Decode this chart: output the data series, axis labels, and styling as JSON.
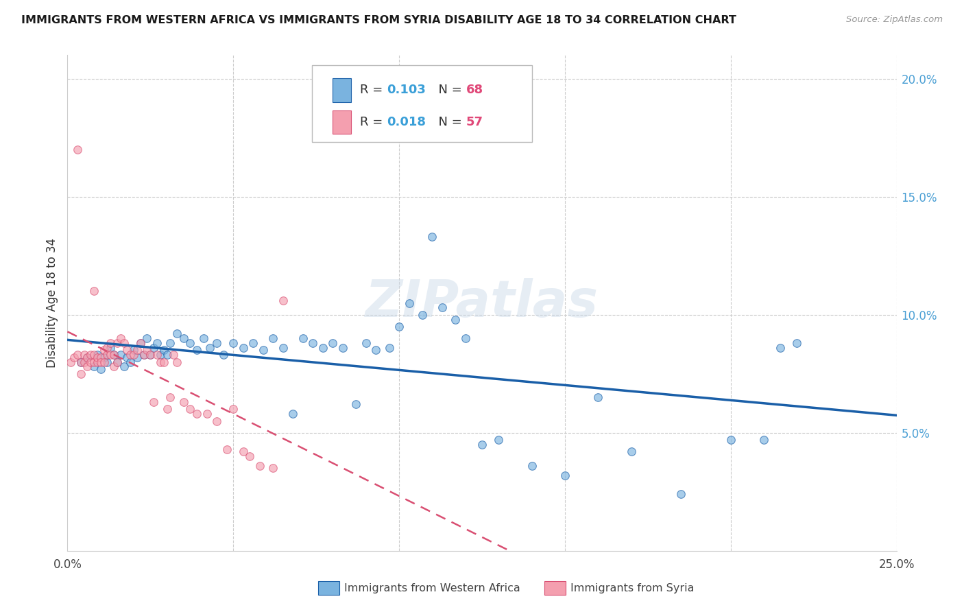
{
  "title": "IMMIGRANTS FROM WESTERN AFRICA VS IMMIGRANTS FROM SYRIA DISABILITY AGE 18 TO 34 CORRELATION CHART",
  "source": "Source: ZipAtlas.com",
  "ylabel": "Disability Age 18 to 34",
  "xlim": [
    0.0,
    0.25
  ],
  "ylim": [
    0.0,
    0.21
  ],
  "legend1_R": "0.103",
  "legend1_N": "68",
  "legend2_R": "0.018",
  "legend2_N": "57",
  "legend_label1": "Immigrants from Western Africa",
  "legend_label2": "Immigrants from Syria",
  "blue_color": "#7ab3df",
  "pink_color": "#f49faf",
  "line_blue": "#1a5fa8",
  "line_pink": "#d94f72",
  "watermark": "ZIPatlas",
  "scatter_alpha": 0.65,
  "scatter_size": 70,
  "blue_x": [
    0.004,
    0.006,
    0.008,
    0.009,
    0.01,
    0.011,
    0.012,
    0.013,
    0.014,
    0.015,
    0.016,
    0.017,
    0.018,
    0.019,
    0.02,
    0.021,
    0.022,
    0.023,
    0.024,
    0.025,
    0.026,
    0.027,
    0.028,
    0.029,
    0.03,
    0.031,
    0.033,
    0.035,
    0.037,
    0.039,
    0.041,
    0.043,
    0.045,
    0.047,
    0.05,
    0.053,
    0.056,
    0.059,
    0.062,
    0.065,
    0.068,
    0.071,
    0.074,
    0.077,
    0.08,
    0.083,
    0.087,
    0.09,
    0.093,
    0.097,
    0.1,
    0.103,
    0.107,
    0.11,
    0.113,
    0.117,
    0.12,
    0.125,
    0.13,
    0.14,
    0.15,
    0.16,
    0.17,
    0.185,
    0.2,
    0.21,
    0.215,
    0.22
  ],
  "blue_y": [
    0.08,
    0.082,
    0.078,
    0.083,
    0.077,
    0.082,
    0.08,
    0.086,
    0.083,
    0.08,
    0.083,
    0.078,
    0.082,
    0.08,
    0.085,
    0.082,
    0.088,
    0.083,
    0.09,
    0.083,
    0.086,
    0.088,
    0.083,
    0.085,
    0.083,
    0.088,
    0.092,
    0.09,
    0.088,
    0.085,
    0.09,
    0.086,
    0.088,
    0.083,
    0.088,
    0.086,
    0.088,
    0.085,
    0.09,
    0.086,
    0.058,
    0.09,
    0.088,
    0.086,
    0.088,
    0.086,
    0.062,
    0.088,
    0.085,
    0.086,
    0.095,
    0.105,
    0.1,
    0.133,
    0.103,
    0.098,
    0.09,
    0.045,
    0.047,
    0.036,
    0.032,
    0.065,
    0.042,
    0.024,
    0.047,
    0.047,
    0.086,
    0.088
  ],
  "pink_x": [
    0.001,
    0.002,
    0.003,
    0.004,
    0.004,
    0.005,
    0.005,
    0.006,
    0.006,
    0.007,
    0.007,
    0.008,
    0.008,
    0.009,
    0.009,
    0.01,
    0.01,
    0.011,
    0.011,
    0.012,
    0.012,
    0.013,
    0.013,
    0.014,
    0.014,
    0.015,
    0.015,
    0.016,
    0.017,
    0.018,
    0.019,
    0.02,
    0.021,
    0.022,
    0.023,
    0.024,
    0.025,
    0.026,
    0.027,
    0.028,
    0.029,
    0.03,
    0.031,
    0.032,
    0.033,
    0.035,
    0.037,
    0.039,
    0.042,
    0.045,
    0.048,
    0.05,
    0.053,
    0.055,
    0.058,
    0.062,
    0.065
  ],
  "pink_y": [
    0.08,
    0.082,
    0.083,
    0.08,
    0.075,
    0.08,
    0.083,
    0.082,
    0.078,
    0.08,
    0.083,
    0.08,
    0.083,
    0.08,
    0.082,
    0.082,
    0.08,
    0.085,
    0.08,
    0.083,
    0.086,
    0.083,
    0.088,
    0.083,
    0.078,
    0.088,
    0.08,
    0.09,
    0.088,
    0.085,
    0.083,
    0.083,
    0.085,
    0.088,
    0.083,
    0.085,
    0.083,
    0.063,
    0.083,
    0.08,
    0.08,
    0.06,
    0.065,
    0.083,
    0.08,
    0.063,
    0.06,
    0.058,
    0.058,
    0.055,
    0.043,
    0.06,
    0.042,
    0.04,
    0.036,
    0.035,
    0.106
  ],
  "pink_outlier_x": [
    0.003
  ],
  "pink_outlier_y": [
    0.17
  ],
  "pink_high_x": [
    0.008
  ],
  "pink_high_y": [
    0.11
  ]
}
